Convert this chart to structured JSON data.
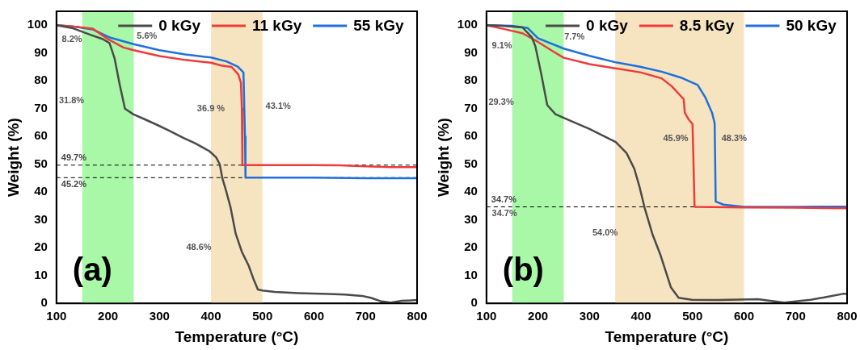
{
  "chart_data": [
    {
      "type": "line",
      "xlabel": "Temperature (°C)",
      "ylabel": "Weight (%)",
      "xlim": [
        100,
        800
      ],
      "ylim": [
        0,
        105
      ],
      "xticks": [
        100,
        200,
        300,
        400,
        500,
        600,
        700,
        800
      ],
      "yticks": [
        0,
        10,
        20,
        30,
        40,
        50,
        60,
        70,
        80,
        90,
        100
      ],
      "legend": "top",
      "grid": false,
      "series": [
        {
          "name": "0 kGy",
          "color": "#4a4a4a",
          "x": [
            100,
            130,
            167,
            190,
            203,
            213,
            223,
            233,
            249,
            270,
            295,
            320,
            346,
            370,
            397,
            410,
            417,
            422,
            430,
            438,
            448,
            460,
            473,
            482,
            491,
            500,
            524,
            570,
            627,
            660,
            693,
            710,
            729,
            749,
            770,
            800
          ],
          "values": [
            100,
            99,
            96.5,
            95,
            93.6,
            88,
            78.5,
            70,
            68,
            66.3,
            64.2,
            62,
            59.5,
            57.5,
            54.7,
            52.5,
            50,
            45,
            40,
            34.5,
            25,
            18.5,
            13.6,
            9,
            5,
            4.6,
            4.1,
            3.7,
            3.4,
            3.2,
            2.7,
            2,
            0.8,
            0.3,
            0.9,
            1.2
          ]
        },
        {
          "name": "11 kGy",
          "color": "#ee3a3a",
          "x": [
            100,
            130,
            170,
            200,
            230,
            250,
            300,
            350,
            400,
            420,
            440,
            453,
            458,
            460,
            461,
            465,
            500,
            600,
            650,
            700,
            750,
            800
          ],
          "values": [
            100,
            99.6,
            98.8,
            95,
            92,
            91,
            88.9,
            87.5,
            86.5,
            85.5,
            85,
            82.3,
            79.4,
            70,
            49.7,
            49.7,
            49.7,
            49.7,
            49.6,
            49.3,
            49,
            49
          ]
        },
        {
          "name": "55 kGy",
          "color": "#1f6fdc",
          "x": [
            100,
            130,
            170,
            205,
            250,
            300,
            350,
            400,
            430,
            452,
            463,
            466,
            467,
            500,
            600,
            700,
            800
          ],
          "values": [
            100,
            99.6,
            98.5,
            95.5,
            93.2,
            91,
            89.5,
            88.4,
            87,
            85.1,
            83,
            60,
            45.2,
            45.2,
            45.2,
            45,
            45
          ]
        }
      ],
      "bands": [
        {
          "axis": "x",
          "from": 150,
          "to": 250,
          "color": "#a8f8a8"
        },
        {
          "axis": "x",
          "from": 400,
          "to": 500,
          "color": "#f6e4c0"
        }
      ],
      "ref_lines": [
        {
          "axis": "y",
          "value": 49.7,
          "label": "49.7%",
          "line_style": "dashed"
        },
        {
          "axis": "y",
          "value": 45.2,
          "label": "45.2%",
          "line_style": "dashed"
        }
      ],
      "annotations": [
        "8.2%",
        "5.6%",
        "31.8%",
        "36.9 %",
        "43.1%",
        "48.6%",
        "(a)"
      ]
    },
    {
      "type": "line",
      "xlabel": "Temperature (°C)",
      "ylabel": "Weight (%)",
      "xlim": [
        100,
        800
      ],
      "ylim": [
        0,
        105
      ],
      "xticks": [
        100,
        200,
        300,
        400,
        500,
        600,
        700,
        800
      ],
      "yticks": [
        0,
        10,
        20,
        30,
        40,
        50,
        60,
        70,
        80,
        90,
        100
      ],
      "legend": "top",
      "grid": false,
      "series": [
        {
          "name": "0 kGy",
          "color": "#4a4a4a",
          "x": [
            100,
            130,
            170,
            188,
            195,
            206,
            218,
            234,
            259,
            300,
            351,
            372,
            387,
            397,
            407,
            422,
            438,
            458,
            473,
            499,
            550,
            627,
            678,
            729,
            760,
            794,
            800
          ],
          "values": [
            100,
            99.8,
            99.2,
            95.7,
            92.4,
            82.8,
            71.3,
            68,
            66,
            62.7,
            58,
            54,
            48.4,
            42,
            34.4,
            25,
            17.3,
            5.8,
            2,
            1.3,
            1.2,
            1.5,
            0.3,
            1.3,
            2.3,
            3.5,
            3.4
          ]
        },
        {
          "name": "8.5 kGy",
          "color": "#ee3a3a",
          "x": [
            100,
            130,
            170,
            200,
            230,
            250,
            300,
            350,
            400,
            440,
            460,
            475,
            483,
            485,
            493,
            500,
            502,
            504,
            600,
            700,
            800
          ],
          "values": [
            100,
            98.8,
            97.1,
            94,
            90.5,
            88.3,
            86,
            84.5,
            83,
            80.9,
            78,
            75,
            73.4,
            68.5,
            66,
            64.5,
            50,
            34.7,
            34.5,
            34.4,
            34.2
          ]
        },
        {
          "name": "50 kGy",
          "color": "#1f6fdc",
          "x": [
            100,
            150,
            180,
            200,
            250,
            300,
            350,
            400,
            440,
            480,
            510,
            525,
            538,
            543,
            545,
            560,
            600,
            700,
            800
          ],
          "values": [
            100,
            99.8,
            99,
            95.3,
            91.6,
            89,
            86.7,
            85,
            83.3,
            81,
            78.5,
            74,
            68.5,
            64.7,
            36.6,
            35.5,
            34.7,
            34.7,
            34.8
          ]
        }
      ],
      "bands": [
        {
          "axis": "x",
          "from": 150,
          "to": 250,
          "color": "#a8f8a8"
        },
        {
          "axis": "x",
          "from": 350,
          "to": 483,
          "color": "#f6e4c0"
        },
        {
          "axis": "x",
          "from": 440,
          "to": 600,
          "color": "#f6e4c0"
        }
      ],
      "ref_lines": [
        {
          "axis": "y",
          "value": 34.7,
          "label": "34.7%",
          "line_style": "dashed"
        }
      ],
      "annotations": [
        "9.1%",
        "7.7%",
        "29.3%",
        "45.9%",
        "48.3%",
        "34.7%",
        "54.0%",
        "(b)"
      ]
    }
  ]
}
